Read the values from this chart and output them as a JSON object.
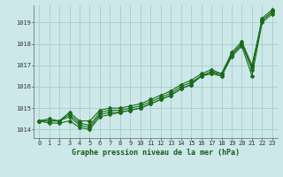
{
  "xlabel": "Graphe pression niveau de la mer (hPa)",
  "background_color": "#cce8e8",
  "grid_color": "#aacccc",
  "line_color": "#1a6b1a",
  "ylim": [
    1013.6,
    1019.8
  ],
  "yticks": [
    1014,
    1015,
    1016,
    1017,
    1018,
    1019
  ],
  "xlim": [
    -0.5,
    23.5
  ],
  "xticks": [
    0,
    1,
    2,
    3,
    4,
    5,
    6,
    7,
    8,
    9,
    10,
    11,
    12,
    13,
    14,
    15,
    16,
    17,
    18,
    19,
    20,
    21,
    22,
    23
  ],
  "series": [
    [
      1014.4,
      1014.4,
      1014.4,
      1014.6,
      1014.2,
      1014.1,
      1014.7,
      1014.8,
      1014.8,
      1014.9,
      1015.0,
      1015.2,
      1015.4,
      1015.6,
      1015.9,
      1016.1,
      1016.5,
      1016.7,
      1016.6,
      1017.5,
      1018.0,
      1016.9,
      1019.2,
      1019.6
    ],
    [
      1014.4,
      1014.3,
      1014.3,
      1014.4,
      1014.1,
      1014.0,
      1014.6,
      1014.7,
      1014.8,
      1014.9,
      1015.0,
      1015.2,
      1015.4,
      1015.6,
      1015.9,
      1016.1,
      1016.5,
      1016.6,
      1016.5,
      1017.4,
      1017.9,
      1016.5,
      1019.0,
      1019.4
    ],
    [
      1014.4,
      1014.4,
      1014.4,
      1014.7,
      1014.3,
      1014.2,
      1014.8,
      1014.9,
      1014.9,
      1015.0,
      1015.1,
      1015.3,
      1015.5,
      1015.7,
      1016.0,
      1016.2,
      1016.5,
      1016.7,
      1016.5,
      1017.5,
      1018.0,
      1016.8,
      1019.1,
      1019.5
    ],
    [
      1014.4,
      1014.5,
      1014.4,
      1014.8,
      1014.4,
      1014.4,
      1014.9,
      1015.0,
      1015.0,
      1015.1,
      1015.2,
      1015.4,
      1015.6,
      1015.8,
      1016.1,
      1016.3,
      1016.6,
      1016.8,
      1016.6,
      1017.6,
      1018.1,
      1017.0,
      1019.1,
      1019.5
    ]
  ],
  "xlabel_fontsize": 6,
  "tick_fontsize": 5,
  "linewidth": 0.8,
  "markersize": 2.0
}
